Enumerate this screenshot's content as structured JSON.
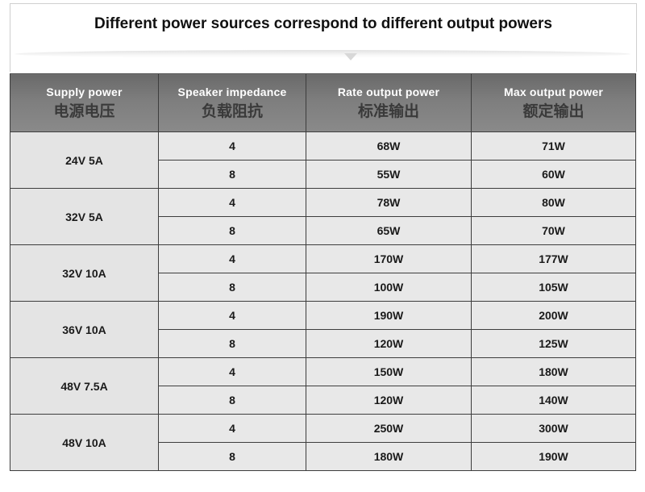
{
  "title": "Different power sources correspond to different output powers",
  "headers": [
    {
      "en": "Supply power",
      "zh": "电源电压"
    },
    {
      "en": "Speaker impedance",
      "zh": "负载阻抗"
    },
    {
      "en": "Rate output power",
      "zh": "标准输出"
    },
    {
      "en": "Max output power",
      "zh": "额定输出"
    }
  ],
  "groups": [
    {
      "supply": "24V 5A",
      "rows": [
        {
          "impedance": "4",
          "rate": "68W",
          "max": "71W"
        },
        {
          "impedance": "8",
          "rate": "55W",
          "max": "60W"
        }
      ]
    },
    {
      "supply": "32V 5A",
      "rows": [
        {
          "impedance": "4",
          "rate": "78W",
          "max": "80W"
        },
        {
          "impedance": "8",
          "rate": "65W",
          "max": "70W"
        }
      ]
    },
    {
      "supply": "32V 10A",
      "rows": [
        {
          "impedance": "4",
          "rate": "170W",
          "max": "177W"
        },
        {
          "impedance": "8",
          "rate": "100W",
          "max": "105W"
        }
      ]
    },
    {
      "supply": "36V 10A",
      "rows": [
        {
          "impedance": "4",
          "rate": "190W",
          "max": "200W"
        },
        {
          "impedance": "8",
          "rate": "120W",
          "max": "125W"
        }
      ]
    },
    {
      "supply": "48V 7.5A",
      "rows": [
        {
          "impedance": "4",
          "rate": "150W",
          "max": "180W"
        },
        {
          "impedance": "8",
          "rate": "120W",
          "max": "140W"
        }
      ]
    },
    {
      "supply": "48V 10A",
      "rows": [
        {
          "impedance": "4",
          "rate": "250W",
          "max": "300W"
        },
        {
          "impedance": "8",
          "rate": "180W",
          "max": "190W"
        }
      ]
    }
  ]
}
